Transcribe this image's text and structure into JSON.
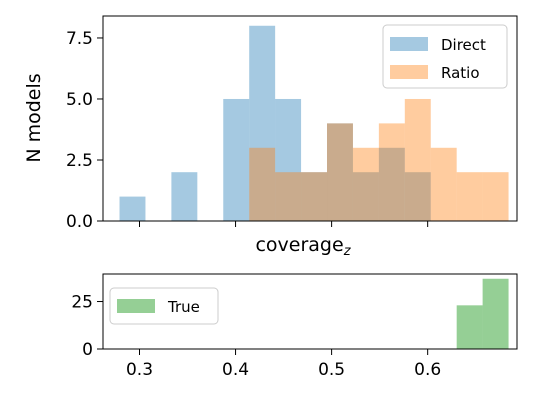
{
  "chart_data": [
    {
      "type": "bar",
      "title": "",
      "xlabel": "coverage",
      "xlabel_subscript": "z",
      "ylabel": "N models",
      "xlim": [
        0.262,
        0.693
      ],
      "ylim": [
        0,
        8.4
      ],
      "yticks": [
        0.0,
        2.5,
        5.0,
        7.5
      ],
      "ytick_labels": [
        "0.0",
        "2.5",
        "5.0",
        "7.5"
      ],
      "xticks": [
        0.3,
        0.4,
        0.5,
        0.6
      ],
      "xtick_labels_shown": false,
      "grid": false,
      "legend_position": "top-right",
      "legend": [
        "Direct",
        "Ratio"
      ],
      "series": [
        {
          "name": "Direct",
          "color": "#1f77b4",
          "alpha": 0.4,
          "bins": [
            {
              "x0": 0.2792,
              "x1": 0.3062,
              "count": 1
            },
            {
              "x0": 0.3332,
              "x1": 0.3602,
              "count": 2
            },
            {
              "x0": 0.3872,
              "x1": 0.4142,
              "count": 5
            },
            {
              "x0": 0.4142,
              "x1": 0.4412,
              "count": 8
            },
            {
              "x0": 0.4412,
              "x1": 0.4682,
              "count": 5
            },
            {
              "x0": 0.4682,
              "x1": 0.4952,
              "count": 2
            },
            {
              "x0": 0.4952,
              "x1": 0.5222,
              "count": 4
            },
            {
              "x0": 0.5222,
              "x1": 0.5492,
              "count": 2
            },
            {
              "x0": 0.5492,
              "x1": 0.5762,
              "count": 3
            },
            {
              "x0": 0.5762,
              "x1": 0.6032,
              "count": 2
            }
          ]
        },
        {
          "name": "Ratio",
          "color": "#ff7f0e",
          "alpha": 0.4,
          "bins": [
            {
              "x0": 0.4142,
              "x1": 0.4412,
              "count": 3
            },
            {
              "x0": 0.4412,
              "x1": 0.4682,
              "count": 2
            },
            {
              "x0": 0.4682,
              "x1": 0.4952,
              "count": 2
            },
            {
              "x0": 0.4952,
              "x1": 0.5222,
              "count": 4
            },
            {
              "x0": 0.5222,
              "x1": 0.5492,
              "count": 3
            },
            {
              "x0": 0.5492,
              "x1": 0.5762,
              "count": 4
            },
            {
              "x0": 0.5762,
              "x1": 0.6032,
              "count": 5
            },
            {
              "x0": 0.6032,
              "x1": 0.6302,
              "count": 3
            },
            {
              "x0": 0.6302,
              "x1": 0.6572,
              "count": 2
            },
            {
              "x0": 0.6572,
              "x1": 0.6842,
              "count": 2
            }
          ]
        }
      ]
    },
    {
      "type": "bar",
      "title": "",
      "xlabel": "",
      "ylabel": "",
      "xlim": [
        0.262,
        0.693
      ],
      "ylim": [
        0,
        39.5
      ],
      "yticks": [
        0,
        25
      ],
      "ytick_labels": [
        "0",
        "25"
      ],
      "xticks": [
        0.3,
        0.4,
        0.5,
        0.6
      ],
      "xtick_labels": [
        "0.3",
        "0.4",
        "0.5",
        "0.6"
      ],
      "grid": false,
      "legend_position": "top-left",
      "legend": [
        "True"
      ],
      "series": [
        {
          "name": "True",
          "color": "#2ca02c",
          "alpha": 0.5,
          "bins": [
            {
              "x0": 0.6302,
              "x1": 0.6572,
              "count": 23
            },
            {
              "x0": 0.6572,
              "x1": 0.6842,
              "count": 37
            }
          ]
        }
      ]
    }
  ]
}
